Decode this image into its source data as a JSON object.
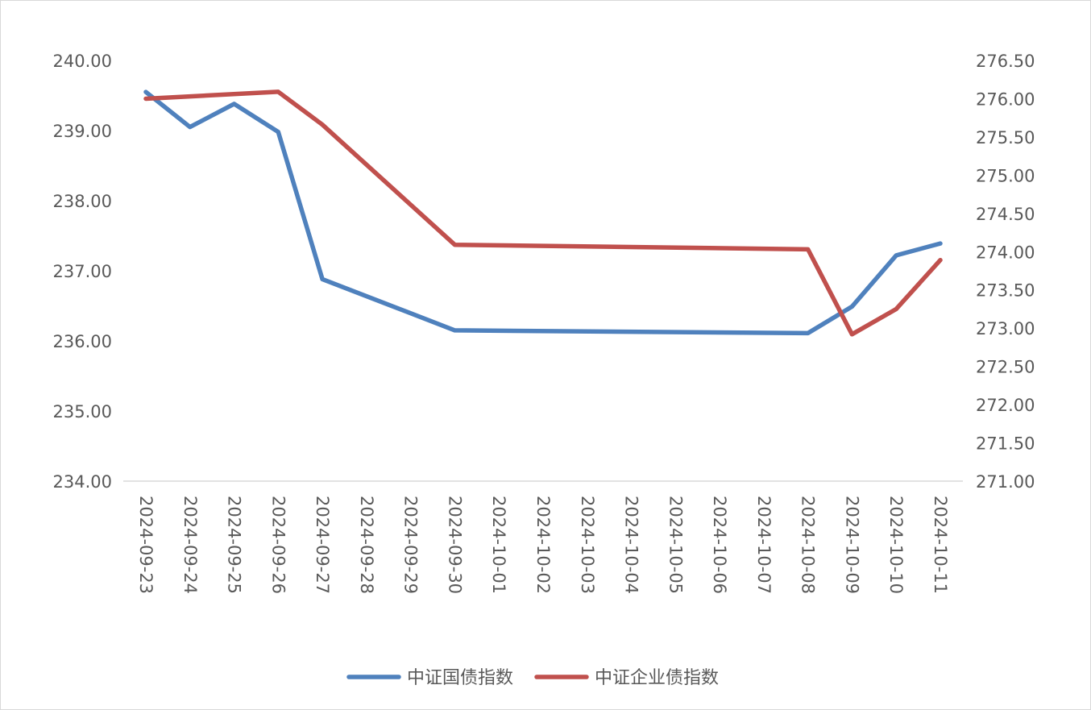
{
  "chart_data": {
    "type": "line",
    "x": [
      "2024-09-23",
      "2024-09-24",
      "2024-09-25",
      "2024-09-26",
      "2024-09-27",
      "2024-09-28",
      "2024-09-29",
      "2024-09-30",
      "2024-10-01",
      "2024-10-02",
      "2024-10-03",
      "2024-10-04",
      "2024-10-05",
      "2024-10-06",
      "2024-10-07",
      "2024-10-08",
      "2024-10-09",
      "2024-10-10",
      "2024-10-11"
    ],
    "series": [
      {
        "name": "中证国债指数",
        "axis": "left",
        "color": "#4f81bd",
        "values": [
          239.55,
          239.05,
          239.38,
          238.98,
          236.88,
          null,
          null,
          236.15,
          null,
          null,
          null,
          null,
          null,
          null,
          null,
          236.11,
          236.49,
          237.22,
          237.39
        ]
      },
      {
        "name": "中证企业债指数",
        "axis": "right",
        "color": "#c0504d",
        "values": [
          276.0,
          null,
          null,
          276.09,
          275.66,
          null,
          null,
          274.09,
          null,
          null,
          null,
          null,
          null,
          null,
          null,
          274.03,
          272.92,
          273.25,
          273.89
        ]
      }
    ],
    "y_left": {
      "lim": [
        234.0,
        240.0
      ],
      "ticks": [
        "234.00",
        "235.00",
        "236.00",
        "237.00",
        "238.00",
        "239.00",
        "240.00"
      ]
    },
    "y_right": {
      "lim": [
        271.0,
        276.5
      ],
      "ticks": [
        "271.00",
        "271.50",
        "272.00",
        "272.50",
        "273.00",
        "273.50",
        "274.00",
        "274.50",
        "275.00",
        "275.50",
        "276.00",
        "276.50"
      ]
    },
    "grid": false,
    "legend_position": "bottom"
  }
}
